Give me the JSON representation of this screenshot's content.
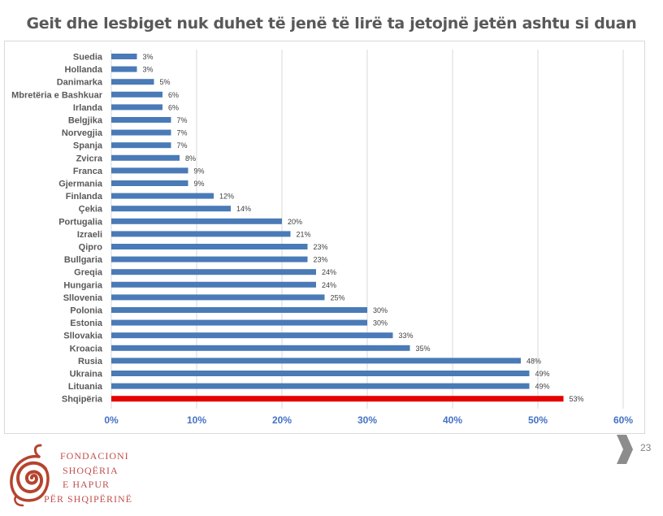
{
  "slide": {
    "title": "Geit dhe lesbiget nuk duhet të jenë të lirë ta jetojnë jetën ashtu si duan",
    "page_number": "23"
  },
  "logo": {
    "lines": [
      "FONDACIONI",
      "SHOQËRIA",
      "E HAPUR",
      "PËR SHQIPËRINË"
    ]
  },
  "colors": {
    "bar": "#4a7ab7",
    "highlight": "#e60000",
    "axis_text": "#4472c4",
    "grid": "#d9d9d9",
    "logo": "#b5442e"
  },
  "chart_data": {
    "type": "bar",
    "orientation": "horizontal",
    "title": "Geit dhe lesbiget nuk duhet të jenë të lirë ta jetojnë jetën ashtu si duan",
    "categories": [
      "Suedia",
      "Hollanda",
      "Danimarka",
      "Mbretëria e Bashkuar",
      "Irlanda",
      "Belgjika",
      "Norvegjia",
      "Spanja",
      "Zvicra",
      "Franca",
      "Gjermania",
      "Finlanda",
      "Çekia",
      "Portugalia",
      "Izraeli",
      "Qipro",
      "Bullgaria",
      "Greqia",
      "Hungaria",
      "Sllovenia",
      "Polonia",
      "Estonia",
      "Sllovakia",
      "Kroacia",
      "Rusia",
      "Ukraina",
      "Lituania",
      "Shqipëria"
    ],
    "values": [
      3,
      3,
      5,
      6,
      6,
      7,
      7,
      7,
      8,
      9,
      9,
      12,
      14,
      20,
      21,
      23,
      23,
      24,
      24,
      25,
      30,
      30,
      33,
      35,
      48,
      49,
      49,
      53
    ],
    "value_labels": [
      "3%",
      "3%",
      "5%",
      "6%",
      "6%",
      "7%",
      "7%",
      "7%",
      "8%",
      "9%",
      "9%",
      "12%",
      "14%",
      "20%",
      "21%",
      "23%",
      "23%",
      "24%",
      "24%",
      "25%",
      "30%",
      "30%",
      "33%",
      "35%",
      "48%",
      "49%",
      "49%",
      "53%"
    ],
    "highlight_category": "Shqipëria",
    "xlim": [
      0,
      60
    ],
    "xticks": [
      0,
      10,
      20,
      30,
      40,
      50,
      60
    ],
    "xtick_labels": [
      "0%",
      "10%",
      "20%",
      "30%",
      "40%",
      "50%",
      "60%"
    ],
    "xlabel": "",
    "ylabel": "",
    "grid": true
  }
}
